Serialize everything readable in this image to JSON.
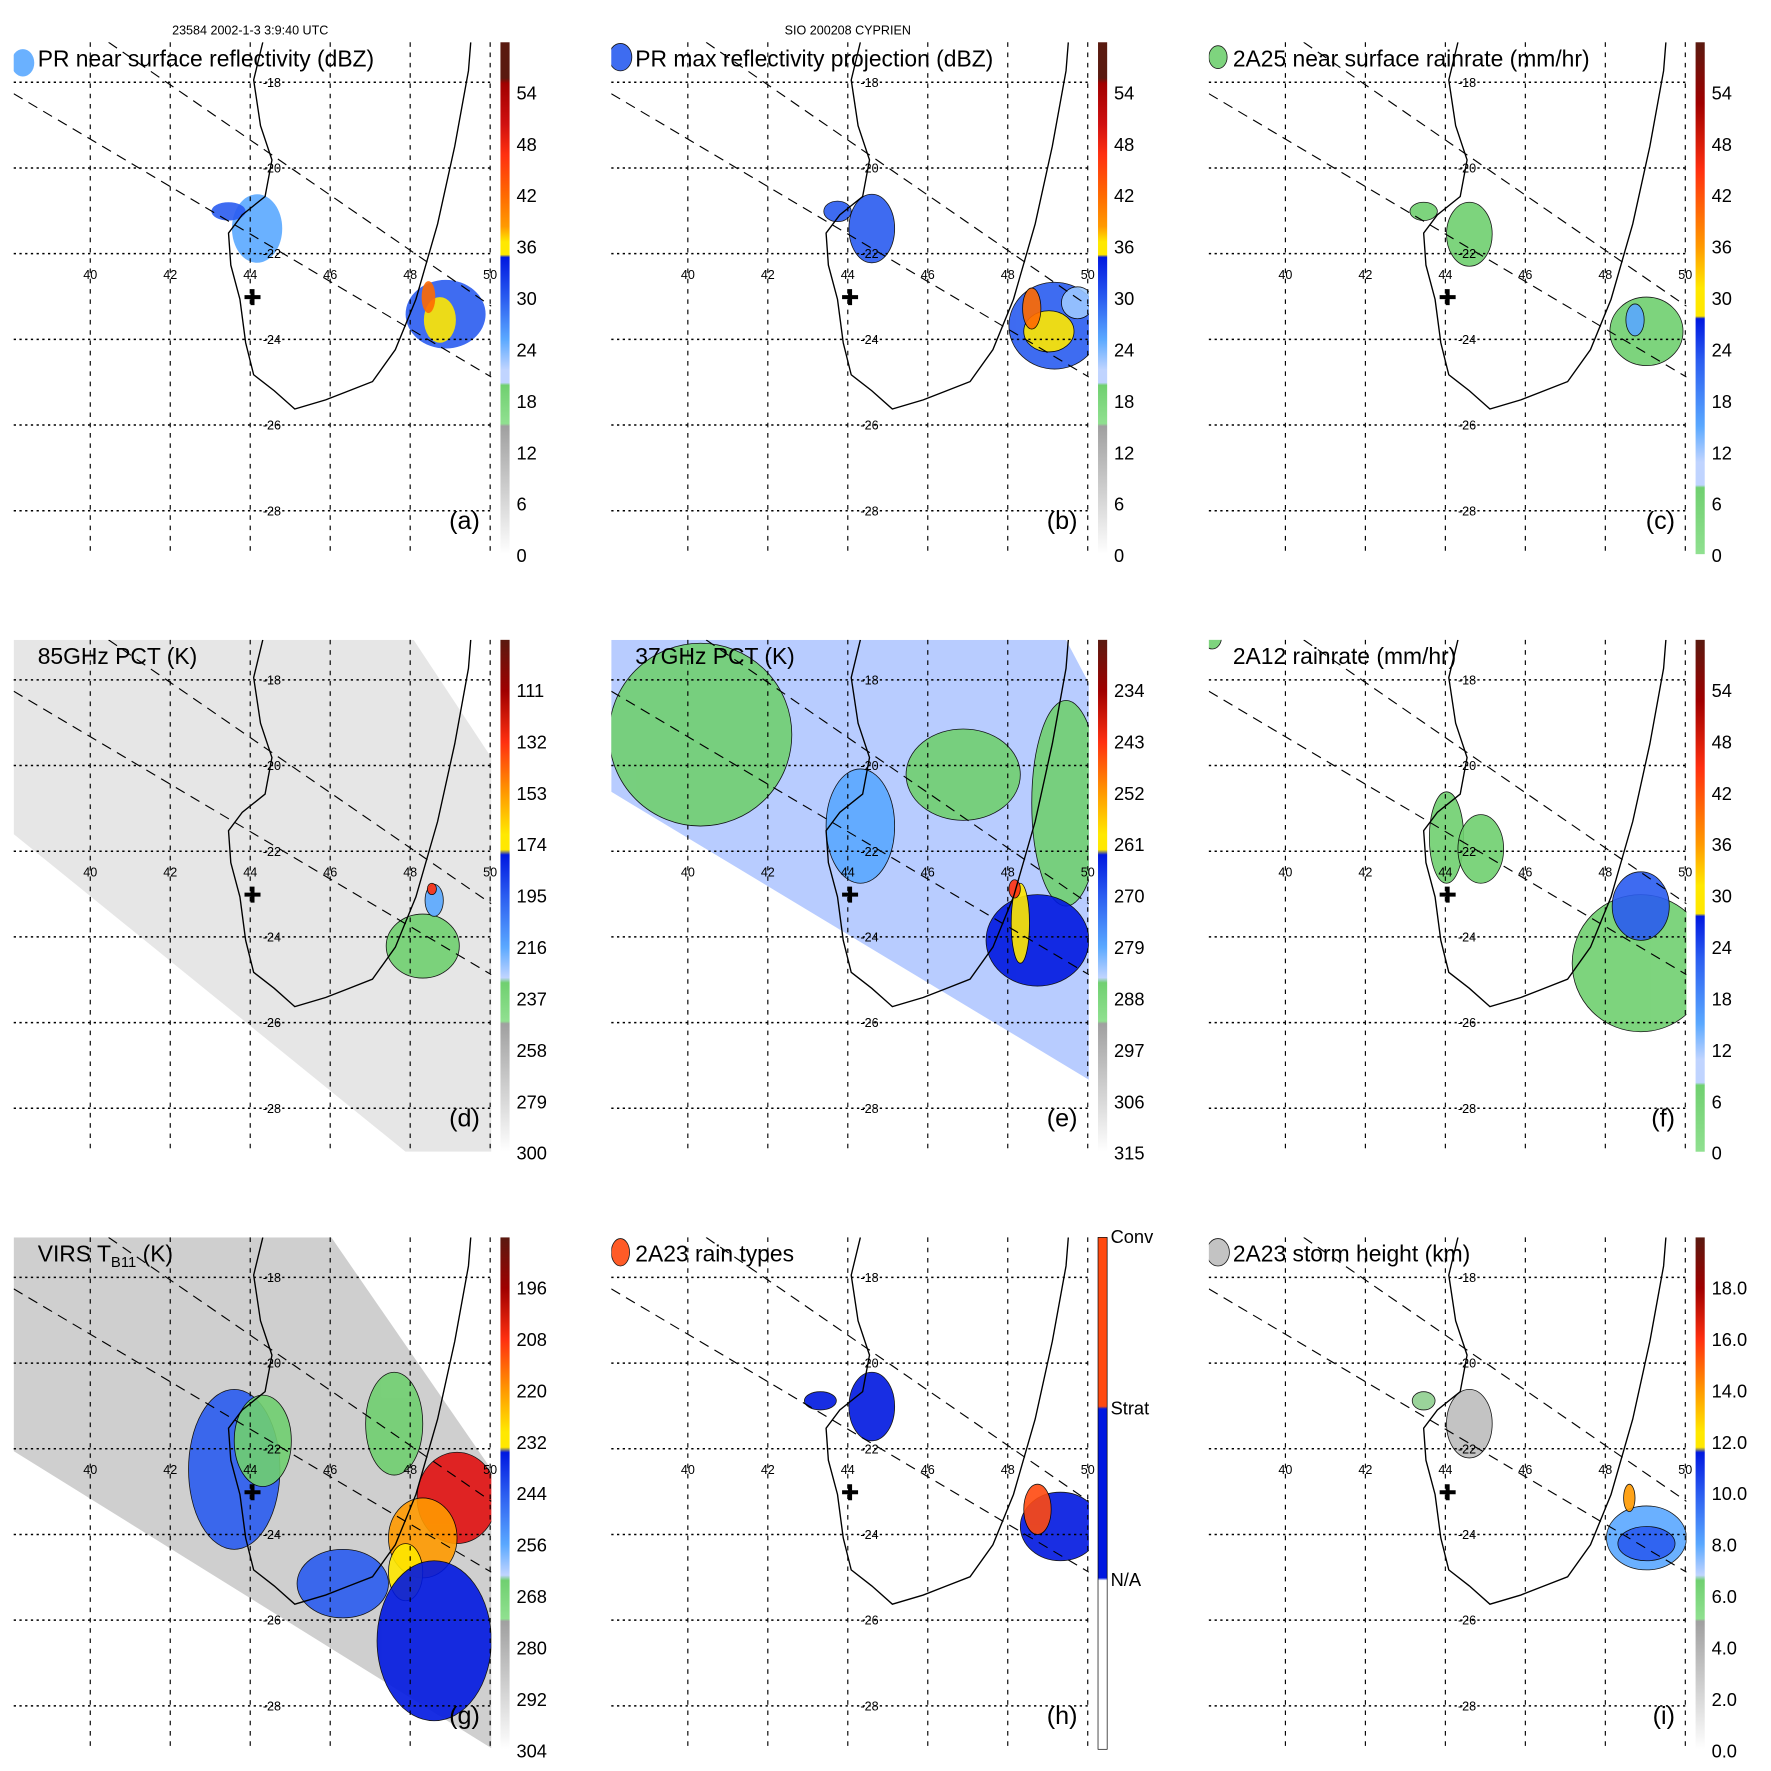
{
  "header": {
    "orbit_time": "23584 2002-1-3 3:9:40 UTC",
    "storm": "SIO 200208 CYPRIEN"
  },
  "chart_data": {
    "type": "heatmap",
    "lon_ticks": [
      "40",
      "42",
      "44",
      "46",
      "48",
      "50"
    ],
    "lat_ticks": [
      "-18",
      "-20",
      "-22",
      "-24",
      "-26",
      "-28"
    ],
    "storm_center_marker": "+",
    "panels": [
      {
        "id": "a",
        "letter": "(a)",
        "title": "PR near surface reflectivity (dBZ)",
        "colorbar": [
          "54",
          "48",
          "42",
          "36",
          "30",
          "24",
          "18",
          "12",
          "6",
          "0"
        ]
      },
      {
        "id": "b",
        "letter": "(b)",
        "title": "PR max reflectivity projection (dBZ)",
        "colorbar": [
          "54",
          "48",
          "42",
          "36",
          "30",
          "24",
          "18",
          "12",
          "6",
          "0"
        ]
      },
      {
        "id": "c",
        "letter": "(c)",
        "title": "2A25 near surface rainrate (mm/hr)",
        "colorbar": [
          "54",
          "48",
          "42",
          "36",
          "30",
          "24",
          "18",
          "12",
          "6",
          "0"
        ]
      },
      {
        "id": "d",
        "letter": "(d)",
        "title": "85GHz PCT (K)",
        "colorbar": [
          "111",
          "132",
          "153",
          "174",
          "195",
          "216",
          "237",
          "258",
          "279",
          "300"
        ]
      },
      {
        "id": "e",
        "letter": "(e)",
        "title": "37GHz PCT (K)",
        "colorbar": [
          "234",
          "243",
          "252",
          "261",
          "270",
          "279",
          "288",
          "297",
          "306",
          "315"
        ]
      },
      {
        "id": "f",
        "letter": "(f)",
        "title": "2A12 rainrate (mm/hr)",
        "colorbar": [
          "54",
          "48",
          "42",
          "36",
          "30",
          "24",
          "18",
          "12",
          "6",
          "0"
        ]
      },
      {
        "id": "g",
        "letter": "(g)",
        "title": "VIRS T",
        "title_sub": "B11",
        "title_suffix": " (K)",
        "colorbar": [
          "196",
          "208",
          "220",
          "232",
          "244",
          "256",
          "268",
          "280",
          "292",
          "304"
        ]
      },
      {
        "id": "h",
        "letter": "(h)",
        "title": "2A23 rain types",
        "colorbar": [
          "Conv",
          "Strat",
          "N/A"
        ]
      },
      {
        "id": "i",
        "letter": "(i)",
        "title": "2A23 storm height (km)",
        "colorbar": [
          "18.0",
          "16.0",
          "14.0",
          "12.0",
          "10.0",
          "8.0",
          "6.0",
          "4.0",
          "2.0",
          "0.0"
        ]
      }
    ]
  }
}
